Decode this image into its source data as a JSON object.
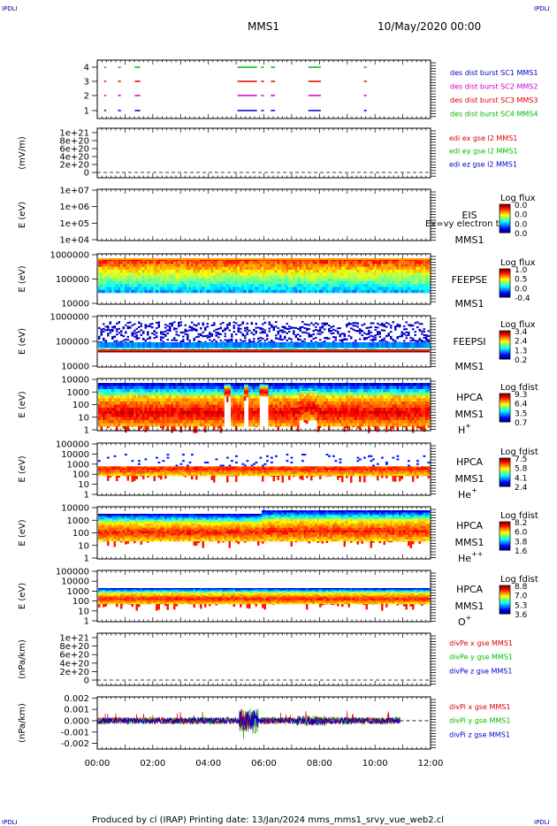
{
  "corner_label": "IPDLI",
  "header": {
    "spacecraft": "MMS1",
    "date": "10/May/2020 00:00"
  },
  "footer": "Produced by cl (IRAP)   Printing date: 13/Jan/2024   mms_mms1_srvy_vue_web2.cl",
  "chart_data": {
    "type": "multi-panel time series",
    "x_axis": {
      "range": [
        "00:00",
        "12:00"
      ],
      "tick_labels": [
        "00:00",
        "02:00",
        "04:00",
        "06:00",
        "08:00",
        "10:00",
        "12:00"
      ]
    },
    "panels": [
      {
        "id": "burst",
        "type": "availability",
        "ytick_labels": [
          "1",
          "2",
          "3",
          "4"
        ],
        "legend": [
          {
            "label": "des dist burst SC1 MMS1",
            "color": "#0000cc"
          },
          {
            "label": "des dist burst SC2 MMS2",
            "color": "#cc00cc"
          },
          {
            "label": "des dist burst SC3 MMS3",
            "color": "#dd0000"
          },
          {
            "label": "des dist burst SC4 MMS4",
            "color": "#00bb00"
          }
        ],
        "segments_hours": [
          [
            0.25,
            0.32
          ],
          [
            0.75,
            0.85
          ],
          [
            1.35,
            1.55
          ],
          [
            5.05,
            5.75
          ],
          [
            5.9,
            6.0
          ],
          [
            6.25,
            6.4
          ],
          [
            7.6,
            8.05
          ],
          [
            9.6,
            9.7
          ]
        ]
      },
      {
        "id": "edi",
        "type": "line",
        "ylabel": "(mV/m)",
        "ytick_labels": [
          "0",
          "2e+20",
          "4e+20",
          "6e+20",
          "8e+20",
          "1e+21"
        ],
        "legend": [
          {
            "label": "edi ex gse l2 MMS1",
            "color": "#dd0000"
          },
          {
            "label": "edi ey gse l2 MMS1",
            "color": "#00bb00"
          },
          {
            "label": "edi ez gse l2 MMS1",
            "color": "#0000cc"
          }
        ]
      },
      {
        "id": "eis",
        "type": "spectrogram",
        "ylabel": "E (eV)",
        "ytick_labels": [
          "1e+04",
          "1e+05",
          "1e+06",
          "1e+07"
        ],
        "title_lines": [
          "EIS",
          "MMS1"
        ],
        "overlay_text": "Ex=vy electron to",
        "colorbar": {
          "label": "Log flux",
          "ticks": [
            "0.0",
            "0.0",
            "0.0",
            "0.0"
          ]
        }
      },
      {
        "id": "feepse",
        "type": "spectrogram",
        "ylabel": "E (eV)",
        "ytick_labels": [
          "10000",
          "100000",
          "1000000"
        ],
        "title_lines": [
          "FEEPSE",
          "MMS1"
        ],
        "colorbar": {
          "label": "Log flux",
          "ticks": [
            "1.0",
            "0.5",
            "0.0",
            "-0.4"
          ]
        }
      },
      {
        "id": "feepsi",
        "type": "spectrogram",
        "ylabel": "E (eV)",
        "ytick_labels": [
          "10000",
          "100000",
          "1000000"
        ],
        "title_lines": [
          "FEEPSI",
          "MMS1"
        ],
        "colorbar": {
          "label": "Log flux",
          "ticks": [
            "3.4",
            "2.4",
            "1.3",
            "0.2"
          ]
        }
      },
      {
        "id": "hpca_h",
        "type": "spectrogram",
        "ylabel": "E (eV)",
        "ytick_labels": [
          "1",
          "10",
          "100",
          "1000",
          "10000"
        ],
        "title_lines": [
          "HPCA",
          "MMS1"
        ],
        "species": {
          "base": "H",
          "sup": "+"
        },
        "colorbar": {
          "label": "Log fdist",
          "ticks": [
            "9.3",
            "6.4",
            "3.5",
            "0.7"
          ]
        }
      },
      {
        "id": "hpca_he",
        "type": "spectrogram",
        "ylabel": "E (eV)",
        "ytick_labels": [
          "1",
          "10",
          "100",
          "1000",
          "10000",
          "100000"
        ],
        "title_lines": [
          "HPCA",
          "MMS1"
        ],
        "species": {
          "base": "He",
          "sup": "+"
        },
        "colorbar": {
          "label": "Log fdist",
          "ticks": [
            "7.5",
            "5.8",
            "4.1",
            "2.4"
          ]
        }
      },
      {
        "id": "hpca_he2",
        "type": "spectrogram",
        "ylabel": "E (eV)",
        "ytick_labels": [
          "1",
          "10",
          "100",
          "1000",
          "10000"
        ],
        "title_lines": [
          "HPCA",
          "MMS1"
        ],
        "species": {
          "base": "He",
          "sup": "++"
        },
        "colorbar": {
          "label": "Log fdist",
          "ticks": [
            "8.2",
            "6.0",
            "3.8",
            "1.6"
          ]
        }
      },
      {
        "id": "hpca_o",
        "type": "spectrogram",
        "ylabel": "E (eV)",
        "ytick_labels": [
          "1",
          "10",
          "100",
          "1000",
          "10000",
          "100000"
        ],
        "title_lines": [
          "HPCA",
          "MMS1"
        ],
        "species": {
          "base": "O",
          "sup": "+"
        },
        "colorbar": {
          "label": "Log fdist",
          "ticks": [
            "8.8",
            "7.0",
            "5.3",
            "3.6"
          ]
        }
      },
      {
        "id": "divpe",
        "type": "line",
        "ylabel": "(nPa/km)",
        "ytick_labels": [
          "0",
          "2e+20",
          "4e+20",
          "6e+20",
          "8e+20",
          "1e+21"
        ],
        "legend": [
          {
            "label": "divPe x gse MMS1",
            "color": "#dd0000"
          },
          {
            "label": "divPe y gse MMS1",
            "color": "#00bb00"
          },
          {
            "label": "divPe z gse MMS1",
            "color": "#0000cc"
          }
        ]
      },
      {
        "id": "divpi",
        "type": "line",
        "ylabel": "(nPa/km)",
        "ytick_labels": [
          "-0.002",
          "-0.001",
          "0.000",
          "0.001",
          "0.002"
        ],
        "ylim": [
          -0.0025,
          0.0021
        ],
        "legend": [
          {
            "label": "divPi x gse MMS1",
            "color": "#dd0000"
          },
          {
            "label": "divPi y gse MMS1",
            "color": "#00bb00"
          },
          {
            "label": "divPi z gse MMS1",
            "color": "#0000cc"
          }
        ]
      }
    ]
  }
}
